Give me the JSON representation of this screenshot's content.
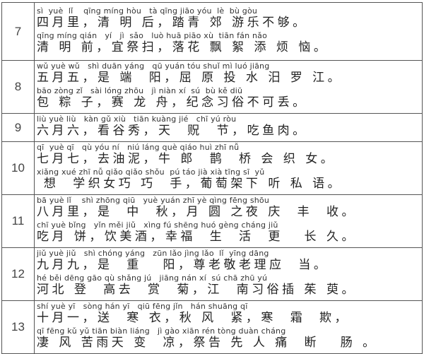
{
  "rows": [
    {
      "num": "7",
      "lines": [
        {
          "pinyin": "sì  yuè  lǐ    qīng míng hòu   tà qīng jiāo yóu  lè  bù gòu",
          "hanzi": "四月里，清 明 后，踏青 郊 游乐不够。"
        },
        {
          "pinyin": "qīng míng qián   yí   jì  sǎo   luò huā piāo xù  tiān fán nǎo",
          "hanzi": "清 明 前，宜祭扫，落花 飘 絮 添 烦 恼。"
        }
      ]
    },
    {
      "num": "8",
      "lines": [
        {
          "pinyin": "wǔ yuè wǔ   shì duān yáng   qū yuán tóu shuǐ mì luó jiāng",
          "hanzi": "五月五，是 端  阳，屈 原 投 水 汨 罗 江。"
        },
        {
          "pinyin": "bāo zòng zǐ   sài lóng zhōu   jì niàn xí  sú  bù kě diū",
          "hanzi": "包 粽 子，赛 龙 舟，纪念习俗不可丢。"
        }
      ]
    },
    {
      "num": "9",
      "lines": [
        {
          "pinyin": "liù yuè liù   kàn gǔ xiù   tiān kuàng jié   chī yú ròu",
          "hanzi": "六月六，看谷秀，天  贶  节，吃鱼肉。"
        }
      ]
    },
    {
      "num": "10",
      "lines": [
        {
          "pinyin": "qī  yuè qī   qù yóu ní   niú láng què qiáo huì zhī nǚ",
          "hanzi": "七月七，去油泥，牛 郎  鹊  桥 会 织 女。"
        },
        {
          "pinyin": "xiǎng xué zhī nǚ qiǎo qiǎo shǒu  pú táo jià xià tīng sī  yǔ",
          "hanzi": " 想  学织女巧 巧  手，葡萄架下 听 私 语。"
        }
      ]
    },
    {
      "num": "11",
      "lines": [
        {
          "pinyin": "bā yuè lǐ    shì zhōng qiū   yuè yuán zhī yè qìng fēng shōu",
          "hanzi": "八月里，是  中  秋，月 圆 之夜 庆  丰  收。"
        },
        {
          "pinyin": "chī yuè bǐng   yǐn měi jiǔ   xìng fú shēng huó gèng cháng jiǔ",
          "hanzi": "吃月 饼，饮美酒，幸福  生  活  更   长 久。"
        }
      ]
    },
    {
      "num": "12",
      "lines": [
        {
          "pinyin": "jiǔ yuè jiǔ   shì chóng yáng   zūn lǎo jìng lǎo  lǐ  yīng dāng",
          "hanzi": "九月九，是  重   阳，尊老敬老理应  当。"
        },
        {
          "pinyin": "hé běi dēng gāo qù shǎng jú   jiāng nán xí  sú chā zhū yú",
          "hanzi": "河北 登  高去  赏  菊，江  南习俗插 茱 萸。"
        }
      ]
    },
    {
      "num": "13",
      "lines": [
        {
          "pinyin": "shí yuè yī   sòng hán yī   qiū fēng jǐn   hán shuāng qī",
          "hanzi": "十月一，送  寒 衣，秋 风  紧，寒  霜  欺，"
        },
        {
          "pinyin": "qī fēng kǔ yǔ tiān biàn liáng   jì gào xiān rén tòng duàn cháng",
          "hanzi": "凄 风 苦雨天 变  凉，祭告 先 人 痛  断   肠 。"
        }
      ]
    }
  ]
}
